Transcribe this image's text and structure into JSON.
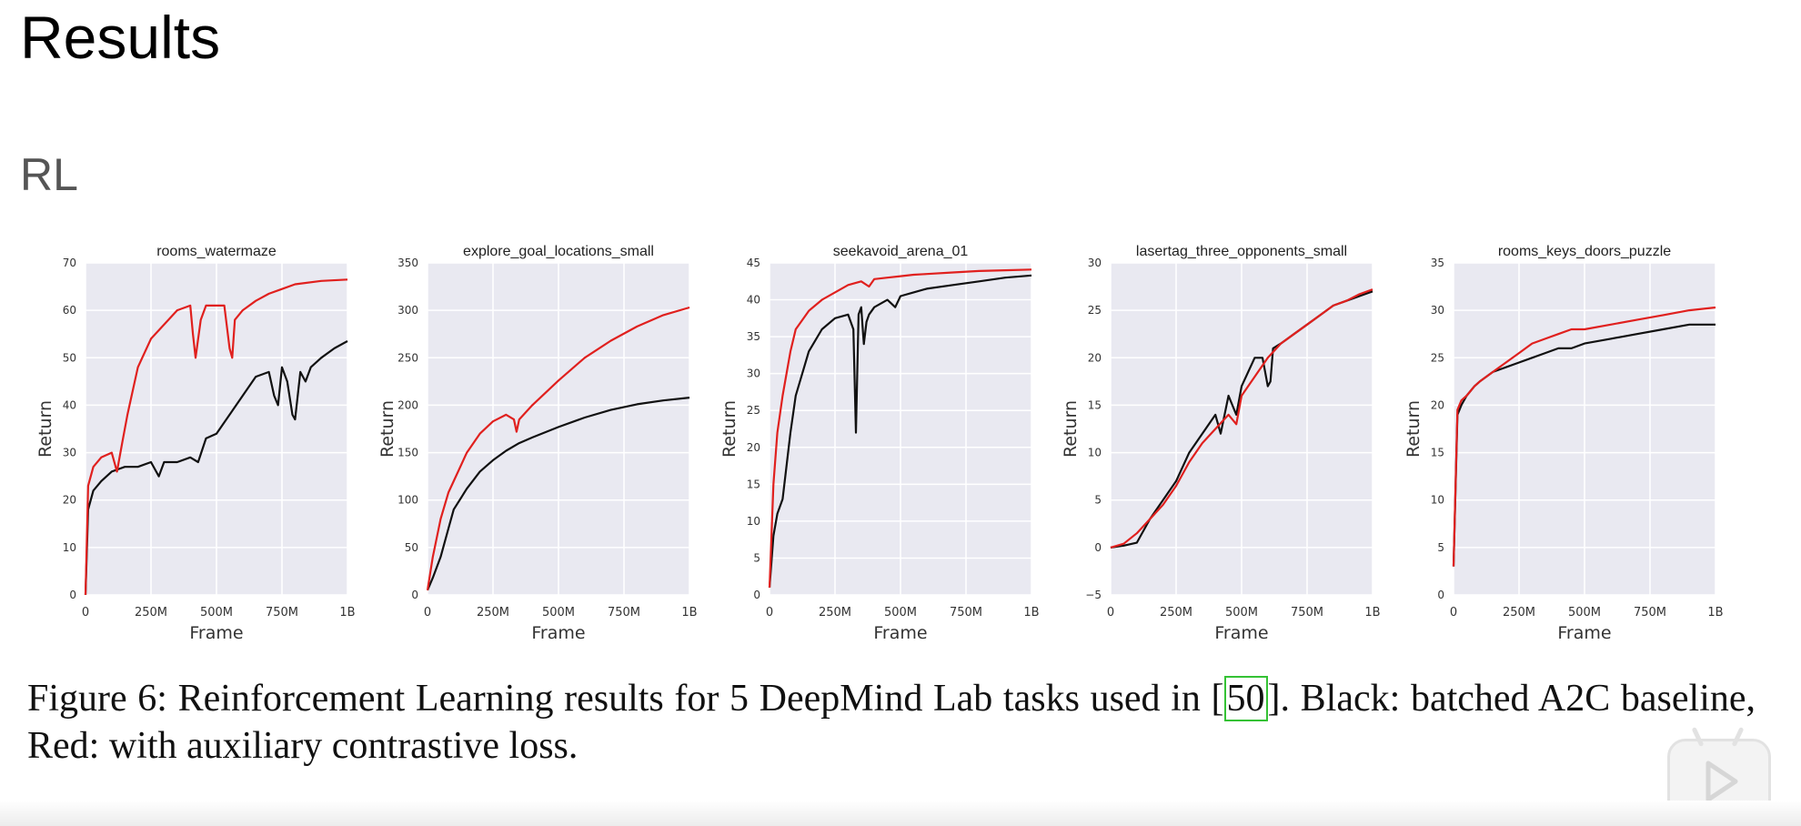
{
  "slide": {
    "title": "Results",
    "section": "RL"
  },
  "caption": {
    "prefix": "Figure 6: Reinforcement Learning results for 5 DeepMind Lab tasks used in [",
    "ref": "50",
    "suffix": "]. Black: batched A2C baseline, Red: with auxiliary contrastive loss."
  },
  "colors": {
    "baseline": "#111111",
    "contrastive": "#e0201e",
    "plot_bg": "#e9e9f1",
    "grid": "#ffffff"
  },
  "icons": {
    "video_player": "play-icon"
  },
  "chart_data": [
    {
      "type": "line",
      "title": "rooms_watermaze",
      "xlabel": "Frame",
      "ylabel": "Return",
      "xlim": [
        0,
        1000
      ],
      "ylim": [
        0,
        70
      ],
      "xticks": [
        0,
        250,
        500,
        750,
        1000
      ],
      "xticklabels": [
        "0",
        "250M",
        "500M",
        "750M",
        "1B"
      ],
      "yticks": [
        0,
        10,
        20,
        30,
        40,
        50,
        60,
        70
      ],
      "yticklabels": [
        "0",
        "10",
        "20",
        "30",
        "40",
        "50",
        "60",
        "70"
      ],
      "grid": true,
      "legend": "none",
      "series": [
        {
          "color": "#111111",
          "x": [
            0,
            10,
            30,
            60,
            100,
            150,
            200,
            250,
            280,
            300,
            350,
            400,
            430,
            460,
            500,
            550,
            600,
            650,
            700,
            720,
            735,
            750,
            770,
            790,
            800,
            820,
            840,
            860,
            900,
            950,
            1000
          ],
          "y": [
            0,
            18,
            22,
            24,
            26,
            27,
            27,
            28,
            25,
            28,
            28,
            29,
            28,
            33,
            34,
            38,
            42,
            46,
            47,
            42,
            40,
            48,
            45,
            38,
            37,
            47,
            45,
            48,
            50,
            52,
            53.5
          ]
        },
        {
          "color": "#e0201e",
          "x": [
            0,
            10,
            30,
            60,
            100,
            120,
            140,
            160,
            200,
            250,
            300,
            350,
            400,
            410,
            420,
            440,
            460,
            500,
            530,
            550,
            560,
            570,
            600,
            650,
            700,
            750,
            800,
            900,
            1000
          ],
          "y": [
            0,
            23,
            27,
            29,
            30,
            26,
            32,
            38,
            48,
            54,
            57,
            60,
            61,
            55,
            50,
            58,
            61,
            61,
            61,
            52,
            50,
            58,
            60,
            62,
            63.5,
            64.5,
            65.5,
            66.2,
            66.5
          ]
        }
      ]
    },
    {
      "type": "line",
      "title": "explore_goal_locations_small",
      "xlabel": "Frame",
      "ylabel": "Return",
      "xlim": [
        0,
        1000
      ],
      "ylim": [
        0,
        350
      ],
      "xticks": [
        0,
        250,
        500,
        750,
        1000
      ],
      "xticklabels": [
        "0",
        "250M",
        "500M",
        "750M",
        "1B"
      ],
      "yticks": [
        0,
        50,
        100,
        150,
        200,
        250,
        300,
        350
      ],
      "yticklabels": [
        "0",
        "50",
        "100",
        "150",
        "200",
        "250",
        "300",
        "350"
      ],
      "grid": true,
      "legend": "none",
      "series": [
        {
          "color": "#111111",
          "x": [
            0,
            20,
            50,
            80,
            100,
            150,
            200,
            250,
            300,
            350,
            400,
            500,
            600,
            700,
            800,
            900,
            1000
          ],
          "y": [
            5,
            18,
            40,
            70,
            90,
            112,
            130,
            142,
            152,
            160,
            166,
            177,
            187,
            195,
            201,
            205,
            208
          ]
        },
        {
          "color": "#e0201e",
          "x": [
            0,
            20,
            50,
            80,
            100,
            150,
            200,
            250,
            300,
            330,
            340,
            350,
            400,
            500,
            600,
            700,
            800,
            900,
            1000
          ],
          "y": [
            5,
            40,
            80,
            108,
            120,
            150,
            170,
            183,
            190,
            185,
            172,
            185,
            200,
            226,
            250,
            268,
            283,
            295,
            303
          ]
        }
      ]
    },
    {
      "type": "line",
      "title": "seekavoid_arena_01",
      "xlabel": "Frame",
      "ylabel": "Return",
      "xlim": [
        0,
        1000
      ],
      "ylim": [
        0,
        45
      ],
      "xticks": [
        0,
        250,
        500,
        750,
        1000
      ],
      "xticklabels": [
        "0",
        "250M",
        "500M",
        "750M",
        "1B"
      ],
      "yticks": [
        0,
        5,
        10,
        15,
        20,
        25,
        30,
        35,
        40,
        45
      ],
      "yticklabels": [
        "0",
        "5",
        "10",
        "15",
        "20",
        "25",
        "30",
        "35",
        "40",
        "45"
      ],
      "grid": true,
      "legend": "none",
      "series": [
        {
          "color": "#111111",
          "x": [
            0,
            15,
            30,
            50,
            80,
            100,
            150,
            200,
            250,
            300,
            320,
            330,
            340,
            350,
            360,
            370,
            380,
            400,
            450,
            480,
            500,
            550,
            600,
            700,
            800,
            900,
            1000
          ],
          "y": [
            1,
            8,
            11,
            13,
            22,
            27,
            33,
            36,
            37.5,
            38,
            36,
            22,
            38,
            39,
            34,
            37,
            38,
            39,
            40,
            39,
            40.5,
            41,
            41.5,
            42,
            42.5,
            43,
            43.3
          ]
        },
        {
          "color": "#e0201e",
          "x": [
            0,
            15,
            30,
            50,
            80,
            100,
            150,
            200,
            250,
            300,
            350,
            380,
            400,
            450,
            500,
            550,
            600,
            700,
            800,
            900,
            1000
          ],
          "y": [
            1,
            15,
            22,
            27,
            33,
            36,
            38.5,
            40,
            41,
            42,
            42.5,
            41.8,
            42.8,
            43,
            43.2,
            43.4,
            43.5,
            43.7,
            43.9,
            44,
            44.1
          ]
        }
      ]
    },
    {
      "type": "line",
      "title": "lasertag_three_opponents_small",
      "xlabel": "Frame",
      "ylabel": "Return",
      "xlim": [
        0,
        1000
      ],
      "ylim": [
        -5,
        30
      ],
      "xticks": [
        0,
        250,
        500,
        750,
        1000
      ],
      "xticklabels": [
        "0",
        "250M",
        "500M",
        "750M",
        "1B"
      ],
      "yticks": [
        -5,
        0,
        5,
        10,
        15,
        20,
        25,
        30
      ],
      "yticklabels": [
        "−5",
        "0",
        "5",
        "10",
        "15",
        "20",
        "25",
        "30"
      ],
      "grid": true,
      "legend": "none",
      "series": [
        {
          "color": "#111111",
          "x": [
            0,
            50,
            100,
            150,
            200,
            250,
            300,
            350,
            400,
            420,
            450,
            480,
            500,
            550,
            580,
            600,
            610,
            620,
            650,
            700,
            750,
            800,
            850,
            900,
            950,
            1000
          ],
          "y": [
            0,
            0.2,
            0.5,
            3,
            5,
            7,
            10,
            12,
            14,
            12,
            16,
            14,
            17,
            20,
            20,
            17,
            17.5,
            21,
            21.5,
            22.5,
            23.5,
            24.5,
            25.5,
            26,
            26.5,
            27
          ]
        },
        {
          "color": "#e0201e",
          "x": [
            0,
            50,
            100,
            150,
            200,
            250,
            300,
            350,
            400,
            450,
            480,
            500,
            550,
            600,
            650,
            700,
            750,
            800,
            850,
            900,
            950,
            1000
          ],
          "y": [
            0,
            0.4,
            1.5,
            3,
            4.5,
            6.5,
            9,
            11,
            12.5,
            14,
            13,
            16,
            18,
            20,
            21.5,
            22.5,
            23.5,
            24.5,
            25.5,
            26,
            26.7,
            27.2
          ]
        }
      ]
    },
    {
      "type": "line",
      "title": "rooms_keys_doors_puzzle",
      "xlabel": "Frame",
      "ylabel": "Return",
      "xlim": [
        0,
        1000
      ],
      "ylim": [
        0,
        35
      ],
      "xticks": [
        0,
        250,
        500,
        750,
        1000
      ],
      "xticklabels": [
        "0",
        "250M",
        "500M",
        "750M",
        "1B"
      ],
      "yticks": [
        0,
        5,
        10,
        15,
        20,
        25,
        30,
        35
      ],
      "yticklabels": [
        "0",
        "5",
        "10",
        "15",
        "20",
        "25",
        "30",
        "35"
      ],
      "grid": true,
      "legend": "none",
      "series": [
        {
          "color": "#111111",
          "x": [
            0,
            15,
            30,
            50,
            80,
            100,
            150,
            200,
            250,
            300,
            350,
            400,
            450,
            500,
            600,
            700,
            800,
            900,
            1000
          ],
          "y": [
            3,
            19,
            20,
            21,
            22,
            22.5,
            23.5,
            24,
            24.5,
            25,
            25.5,
            26,
            26,
            26.5,
            27,
            27.5,
            28,
            28.5,
            28.5
          ]
        },
        {
          "color": "#e0201e",
          "x": [
            0,
            15,
            30,
            50,
            80,
            100,
            150,
            200,
            250,
            300,
            350,
            400,
            450,
            500,
            600,
            700,
            800,
            900,
            1000
          ],
          "y": [
            3,
            19.5,
            20.5,
            21,
            22,
            22.5,
            23.5,
            24.5,
            25.5,
            26.5,
            27,
            27.5,
            28,
            28,
            28.5,
            29,
            29.5,
            30,
            30.3
          ]
        }
      ]
    }
  ]
}
